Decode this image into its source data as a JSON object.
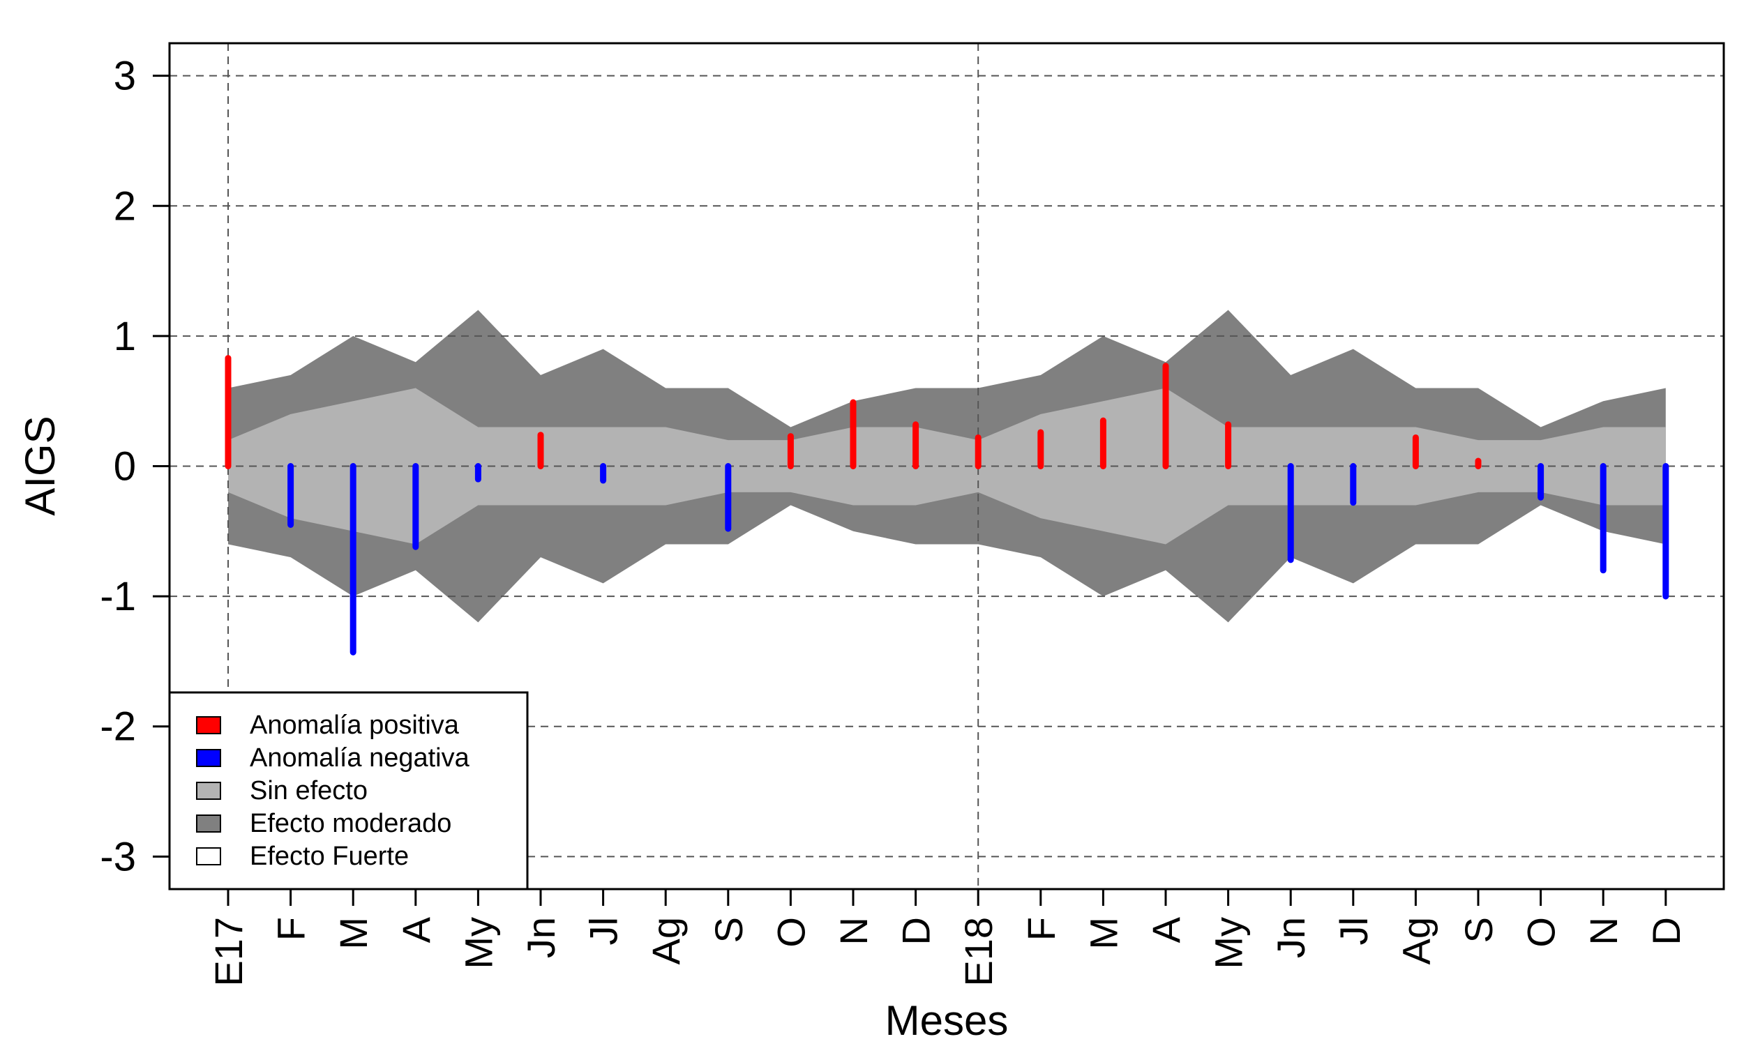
{
  "chart_data": {
    "type": "bar",
    "title": "",
    "xlabel": "Meses",
    "ylabel": "AIGS",
    "ylim": [
      -3.25,
      3.25
    ],
    "yticks": [
      -3,
      -2,
      -1,
      0,
      1,
      2,
      3
    ],
    "categories": [
      "E17",
      "F",
      "M",
      "A",
      "My",
      "Jn",
      "Jl",
      "Ag",
      "S",
      "O",
      "N",
      "D",
      "E18",
      "F",
      "M",
      "A",
      "My",
      "Jn",
      "Jl",
      "Ag",
      "S",
      "O",
      "N",
      "D"
    ],
    "values": [
      0.83,
      -0.45,
      -1.43,
      -0.62,
      -0.1,
      0.24,
      -0.11,
      0.0,
      -0.48,
      0.23,
      0.49,
      0.32,
      0.22,
      0.26,
      0.35,
      0.77,
      0.32,
      -0.72,
      -0.28,
      0.22,
      0.04,
      -0.24,
      -0.8,
      -1.0
    ],
    "bands": {
      "sin_efecto": [
        0.2,
        0.4,
        0.5,
        0.6,
        0.3,
        0.3,
        0.3,
        0.3,
        0.2,
        0.2,
        0.3,
        0.3,
        0.2,
        0.4,
        0.5,
        0.6,
        0.3,
        0.3,
        0.3,
        0.3,
        0.2,
        0.2,
        0.3,
        0.3
      ],
      "efecto_moderado": [
        0.6,
        0.7,
        1.0,
        0.8,
        1.2,
        0.7,
        0.9,
        0.6,
        0.6,
        0.3,
        0.5,
        0.6,
        0.6,
        0.7,
        1.0,
        0.8,
        1.2,
        0.7,
        0.9,
        0.6,
        0.6,
        0.3,
        0.5,
        0.6
      ]
    },
    "vertical_gridlines_at": [
      "E17",
      "E18"
    ],
    "grid": true,
    "legend_position": "bottom-left",
    "legend": [
      {
        "label": "Anomalía positiva",
        "color": "#ff0000"
      },
      {
        "label": "Anomalía negativa",
        "color": "#0000ff"
      },
      {
        "label": "Sin efecto",
        "color": "#b3b3b3"
      },
      {
        "label": "Efecto moderado",
        "color": "#808080"
      },
      {
        "label": "Efecto Fuerte",
        "color": "#ffffff"
      }
    ],
    "colors": {
      "positive": "#ff0000",
      "negative": "#0000ff",
      "sin_efecto": "#b3b3b3",
      "efecto_moderado": "#808080"
    }
  }
}
